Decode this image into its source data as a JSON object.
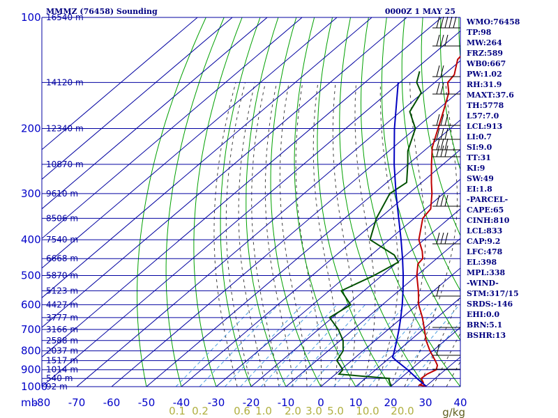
{
  "header": {
    "station": "MMMZ (76458) Sounding",
    "time": "0000Z  1 MAY 25"
  },
  "indices": [
    "WMO:76458",
    "TP:98",
    "MW:264",
    "FRZ:589",
    "WB0:667",
    "PW:1.02",
    "RH:31.9",
    "MAXT:37.6",
    "TH:5778",
    "L57:7.0",
    "LCL:913",
    "LI:0.7",
    "SI:9.0",
    "TT:31",
    "KI:9",
    "SW:49",
    "EI:1.8",
    "-PARCEL-",
    "CAPE:65",
    "CINH:810",
    "LCL:833",
    "CAP:9.2",
    "LFC:478",
    "EL:398",
    "MPL:338",
    "-WIND-",
    "STM:317/15",
    "SRDS:-146",
    "EHI:0.0",
    "BRN:5.1",
    "BSHR:13"
  ],
  "colors": {
    "temperature": "#c00000",
    "dewpoint": "#005000",
    "parcel": "#0000c0",
    "grid": "#0000a0",
    "dry_adiabat": "#00a000",
    "moist_adiabat": "#404040",
    "mixing_ratio": "#4a9de0",
    "labels": "#0000c8"
  },
  "chart_data": {
    "type": "skew-t",
    "title": "MMMZ (76458) Sounding",
    "pressure_unit": "mb",
    "mixing_ratio_unit": "g/kg",
    "pressure_levels": [
      100,
      200,
      300,
      400,
      500,
      600,
      700,
      800,
      900,
      1000
    ],
    "temperature_ticks": [
      -80,
      -70,
      -60,
      -50,
      -40,
      -30,
      -20,
      -10,
      0,
      10,
      20,
      30,
      40
    ],
    "mixing_ratio_ticks": [
      "0.1",
      "0.2",
      "0.6",
      "1.0",
      "2.0",
      "3.0",
      "5.0",
      "10.0",
      "20.0"
    ],
    "xlim": [
      -80,
      40
    ],
    "ylim": [
      1000,
      100
    ],
    "height_labels": [
      {
        "p": 100,
        "text": "16540 m"
      },
      {
        "p": 150,
        "text": "14120 m"
      },
      {
        "p": 200,
        "text": "12340 m"
      },
      {
        "p": 250,
        "text": "10870 m"
      },
      {
        "p": 300,
        "text": "9610 m"
      },
      {
        "p": 350,
        "text": "8506 m"
      },
      {
        "p": 400,
        "text": "7540 m"
      },
      {
        "p": 450,
        "text": "6668 m"
      },
      {
        "p": 500,
        "text": "5870 m"
      },
      {
        "p": 550,
        "text": "5123 m"
      },
      {
        "p": 600,
        "text": "4427 m"
      },
      {
        "p": 650,
        "text": "3777 m"
      },
      {
        "p": 700,
        "text": "3166 m"
      },
      {
        "p": 750,
        "text": "2588 m"
      },
      {
        "p": 800,
        "text": "2037 m"
      },
      {
        "p": 850,
        "text": "1517 m"
      },
      {
        "p": 900,
        "text": "1014 m"
      },
      {
        "p": 950,
        "text": "540 m"
      },
      {
        "p": 1000,
        "text": "92 m"
      }
    ],
    "series": [
      {
        "key": "temperature",
        "points": [
          [
            997,
            30.0
          ],
          [
            990,
            27.8
          ],
          [
            975,
            28.0
          ],
          [
            950,
            26.0
          ],
          [
            925,
            26.2
          ],
          [
            900,
            27.4
          ],
          [
            875,
            26.2
          ],
          [
            850,
            24.0
          ],
          [
            800,
            19.2
          ],
          [
            750,
            14.6
          ],
          [
            700,
            10.4
          ],
          [
            650,
            5.8
          ],
          [
            600,
            0.4
          ],
          [
            550,
            -4.4
          ],
          [
            500,
            -10.0
          ],
          [
            465,
            -13.6
          ],
          [
            450,
            -14.0
          ],
          [
            430,
            -16.6
          ],
          [
            400,
            -21.5
          ],
          [
            350,
            -27.6
          ],
          [
            330,
            -28.5
          ],
          [
            300,
            -33.3
          ],
          [
            280,
            -37.2
          ],
          [
            250,
            -43.3
          ],
          [
            225,
            -48.8
          ],
          [
            200,
            -53.5
          ],
          [
            180,
            -57.7
          ],
          [
            160,
            -62.5
          ],
          [
            150,
            -66.3
          ],
          [
            143,
            -67.0
          ],
          [
            130,
            -71.2
          ],
          [
            120,
            -72.2
          ],
          [
            110,
            -73.4
          ],
          [
            100,
            -75.9
          ]
        ]
      },
      {
        "key": "dewpoint",
        "points": [
          [
            997,
            20.0
          ],
          [
            975,
            18.4
          ],
          [
            955,
            17.0
          ],
          [
            950,
            16.9
          ],
          [
            925,
            1.0
          ],
          [
            900,
            0.6
          ],
          [
            850,
            -4.2
          ],
          [
            800,
            -5.7
          ],
          [
            750,
            -9.2
          ],
          [
            700,
            -14.3
          ],
          [
            650,
            -20.8
          ],
          [
            600,
            -19.1
          ],
          [
            550,
            -26.5
          ],
          [
            500,
            -22.3
          ],
          [
            460,
            -19.8
          ],
          [
            440,
            -23.4
          ],
          [
            400,
            -35.5
          ],
          [
            350,
            -40.9
          ],
          [
            300,
            -45.4
          ],
          [
            280,
            -44.3
          ],
          [
            250,
            -50.1
          ],
          [
            230,
            -54.6
          ],
          [
            200,
            -60.0
          ],
          [
            180,
            -67.3
          ],
          [
            160,
            -70.4
          ],
          [
            150,
            -75.2
          ],
          [
            140,
            -78.1
          ]
        ]
      },
      {
        "key": "parcel",
        "points": [
          [
            997,
            30.0
          ],
          [
            950,
            24.8
          ],
          [
            900,
            19.2
          ],
          [
            850,
            12.8
          ],
          [
            833,
            10.7
          ],
          [
            800,
            9.0
          ],
          [
            750,
            6.2
          ],
          [
            700,
            3.1
          ],
          [
            650,
            -0.4
          ],
          [
            600,
            -4.3
          ],
          [
            550,
            -8.8
          ],
          [
            500,
            -13.9
          ],
          [
            450,
            -19.8
          ],
          [
            400,
            -26.6
          ],
          [
            350,
            -34.5
          ],
          [
            300,
            -43.6
          ],
          [
            250,
            -54.0
          ],
          [
            200,
            -66.0
          ],
          [
            150,
            -80.5
          ]
        ]
      }
    ]
  }
}
